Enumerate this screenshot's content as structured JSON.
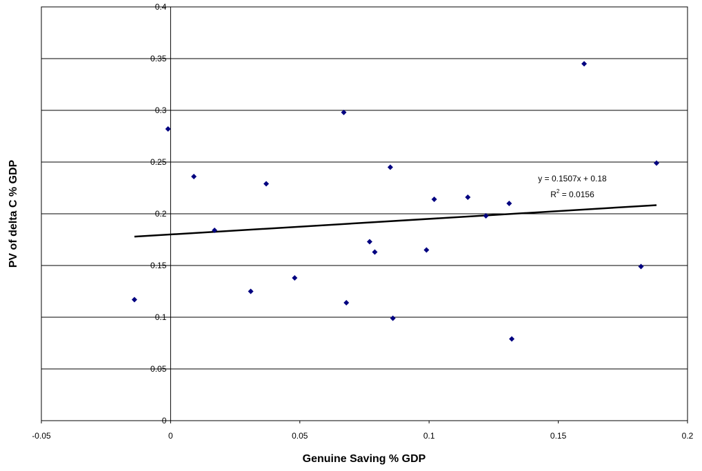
{
  "chart_data": {
    "type": "scatter",
    "xlabel": "Genuine Saving % GDP",
    "ylabel": "PV of delta C % GDP",
    "xlim": [
      -0.05,
      0.2
    ],
    "ylim": [
      0,
      0.4
    ],
    "x_ticks": [
      "-0.05",
      "0",
      "0.05",
      "0.1",
      "0.15",
      "0.2"
    ],
    "x_tick_values": [
      -0.05,
      0,
      0.05,
      0.1,
      0.15,
      0.2
    ],
    "y_ticks": [
      "0",
      "0.05",
      "0.1",
      "0.15",
      "0.2",
      "0.25",
      "0.3",
      "0.35",
      "0.4"
    ],
    "y_tick_values": [
      0,
      0.05,
      0.1,
      0.15,
      0.2,
      0.25,
      0.3,
      0.35,
      0.4
    ],
    "grid": "horizontal",
    "marker_color": "#000080",
    "points": [
      {
        "x": -0.014,
        "y": 0.117
      },
      {
        "x": -0.001,
        "y": 0.282
      },
      {
        "x": 0.009,
        "y": 0.236
      },
      {
        "x": 0.017,
        "y": 0.184
      },
      {
        "x": 0.031,
        "y": 0.125
      },
      {
        "x": 0.037,
        "y": 0.229
      },
      {
        "x": 0.048,
        "y": 0.138
      },
      {
        "x": 0.067,
        "y": 0.298
      },
      {
        "x": 0.068,
        "y": 0.114
      },
      {
        "x": 0.077,
        "y": 0.173
      },
      {
        "x": 0.079,
        "y": 0.163
      },
      {
        "x": 0.085,
        "y": 0.245
      },
      {
        "x": 0.086,
        "y": 0.099
      },
      {
        "x": 0.099,
        "y": 0.165
      },
      {
        "x": 0.102,
        "y": 0.214
      },
      {
        "x": 0.115,
        "y": 0.216
      },
      {
        "x": 0.122,
        "y": 0.198
      },
      {
        "x": 0.131,
        "y": 0.21
      },
      {
        "x": 0.132,
        "y": 0.079
      },
      {
        "x": 0.16,
        "y": 0.345
      },
      {
        "x": 0.182,
        "y": 0.149
      },
      {
        "x": 0.188,
        "y": 0.249
      }
    ],
    "trendline": {
      "slope": 0.1507,
      "intercept": 0.18,
      "x_start": -0.014,
      "x_end": 0.188,
      "equation": "y = 0.1507x + 0.18",
      "r2_prefix": "R",
      "r2_sup": "2",
      "r2_value": " = 0.0156"
    }
  }
}
